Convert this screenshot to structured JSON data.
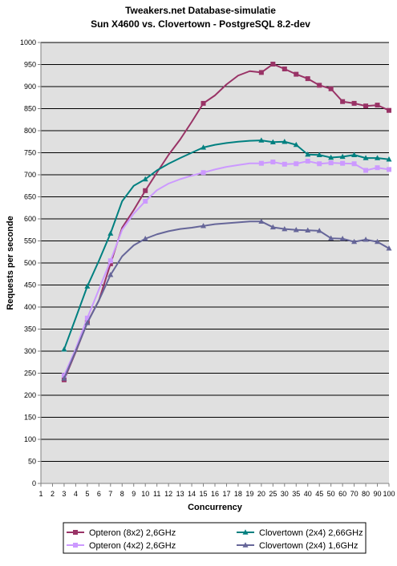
{
  "chart_data": {
    "type": "line",
    "title": "Tweakers.net Database-simulatie",
    "subtitle": "Sun X4600 vs. Clovertown - PostgreSQL 8.2-dev",
    "xlabel": "Concurrency",
    "ylabel": "Requests per seconde",
    "categories": [
      "1",
      "2",
      "3",
      "4",
      "5",
      "6",
      "7",
      "8",
      "9",
      "10",
      "11",
      "12",
      "13",
      "14",
      "15",
      "16",
      "17",
      "18",
      "19",
      "20",
      "25",
      "30",
      "35",
      "40",
      "45",
      "50",
      "60",
      "70",
      "80",
      "90",
      "100"
    ],
    "ylim": [
      0,
      1000
    ],
    "yticks": [
      0,
      50,
      100,
      150,
      200,
      250,
      300,
      350,
      400,
      450,
      500,
      550,
      600,
      650,
      700,
      750,
      800,
      850,
      900,
      950,
      1000
    ],
    "grid": "horizontal",
    "plot_background": "#e0e0e0",
    "legend_position": "bottom",
    "series": [
      {
        "name": "Opteron (8x2) 2,6GHz",
        "color": "#993366",
        "marker": "square",
        "values": [
          null,
          null,
          235,
          298,
          365,
          415,
          498,
          580,
          620,
          664,
          705,
          745,
          780,
          820,
          862,
          880,
          905,
          925,
          935,
          932,
          951,
          940,
          928,
          918,
          903,
          895,
          866,
          862,
          856,
          858,
          846
        ],
        "marker_indices": [
          2,
          4,
          6,
          9,
          14,
          19,
          20,
          21,
          22,
          23,
          24,
          25,
          26,
          27,
          28,
          29,
          30
        ]
      },
      {
        "name": "Opteron (4x2) 2,6GHz",
        "color": "#cc99ff",
        "marker": "square",
        "values": [
          null,
          null,
          245,
          305,
          375,
          440,
          505,
          575,
          612,
          640,
          665,
          680,
          690,
          698,
          705,
          712,
          718,
          722,
          726,
          726,
          729,
          724,
          725,
          731,
          725,
          727,
          726,
          725,
          710,
          716,
          712
        ],
        "marker_indices": [
          2,
          4,
          6,
          9,
          14,
          19,
          20,
          21,
          22,
          23,
          24,
          25,
          26,
          27,
          28,
          29,
          30
        ]
      },
      {
        "name": "Clovertown (2x4) 2,66GHz",
        "color": "#008080",
        "marker": "triangle",
        "values": [
          null,
          null,
          304,
          375,
          447,
          505,
          567,
          640,
          675,
          690,
          710,
          725,
          738,
          750,
          762,
          768,
          772,
          775,
          777,
          778,
          774,
          775,
          768,
          746,
          745,
          739,
          741,
          745,
          738,
          738,
          735
        ],
        "marker_indices": [
          2,
          4,
          6,
          9,
          14,
          19,
          20,
          21,
          22,
          23,
          24,
          25,
          26,
          27,
          28,
          29,
          30
        ]
      },
      {
        "name": "Clovertown (2x4) 1,6GHz",
        "color": "#666699",
        "marker": "triangle",
        "values": [
          null,
          null,
          238,
          300,
          364,
          415,
          473,
          515,
          540,
          555,
          565,
          572,
          577,
          580,
          584,
          588,
          590,
          592,
          594,
          594,
          581,
          577,
          575,
          574,
          573,
          556,
          555,
          548,
          553,
          548,
          533
        ],
        "marker_indices": [
          2,
          4,
          6,
          9,
          14,
          19,
          20,
          21,
          22,
          23,
          24,
          25,
          26,
          27,
          28,
          29,
          30
        ]
      }
    ]
  }
}
